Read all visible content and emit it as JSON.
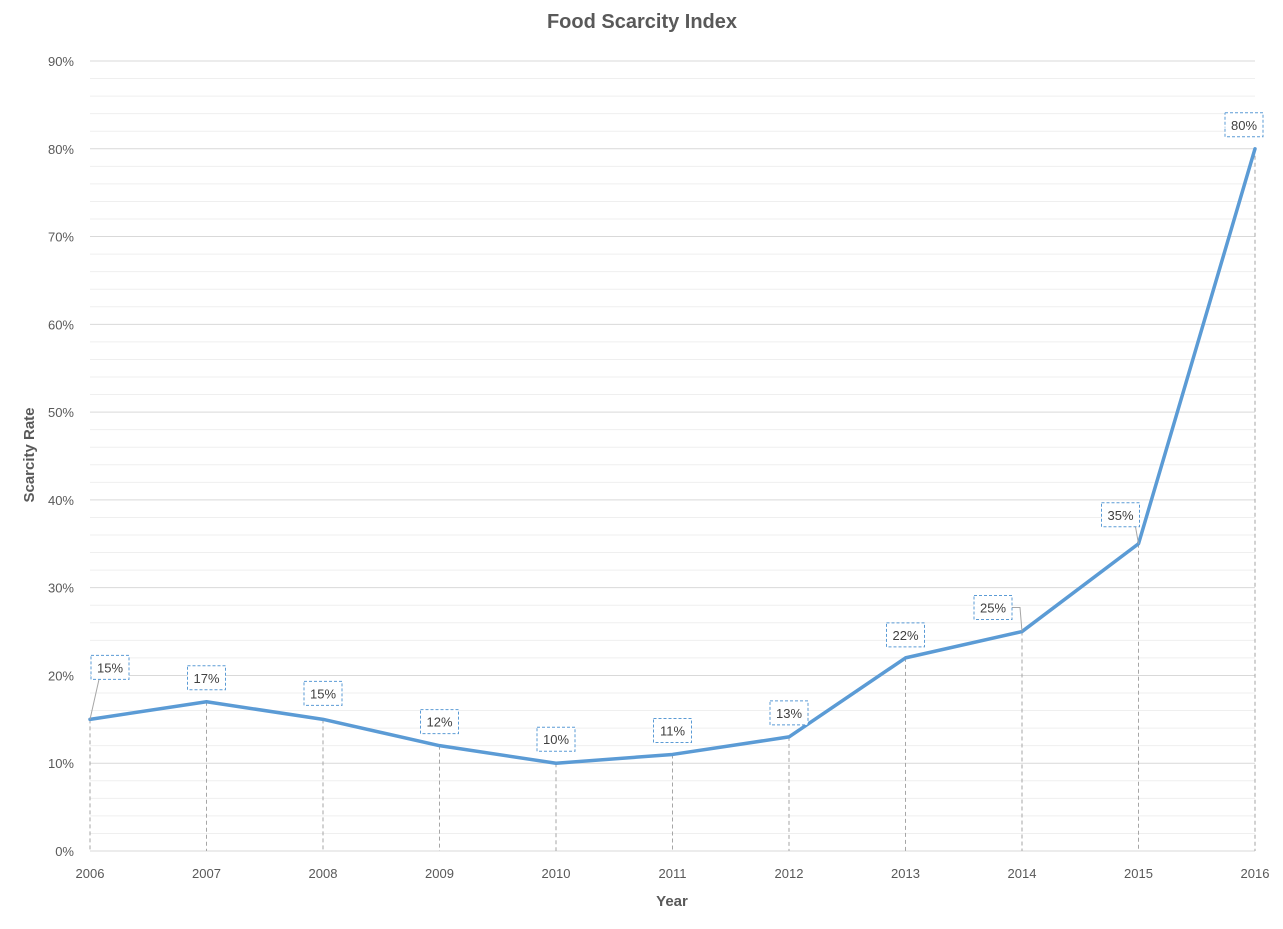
{
  "chart_data": {
    "type": "line",
    "title": "Food Scarcity Index",
    "xlabel": "Year",
    "ylabel": "Scarcity Rate",
    "categories": [
      "2006",
      "2007",
      "2008",
      "2009",
      "2010",
      "2011",
      "2012",
      "2013",
      "2014",
      "2015",
      "2016"
    ],
    "series": [
      {
        "values": [
          15,
          17,
          15,
          12,
          10,
          11,
          13,
          22,
          25,
          35,
          80
        ],
        "labels": [
          "15%",
          "17%",
          "15%",
          "12%",
          "10%",
          "11%",
          "13%",
          "22%",
          "25%",
          "35%",
          "80%"
        ],
        "color": "#5b9bd5"
      }
    ],
    "ylim": [
      0,
      90
    ],
    "yticks": [
      0,
      10,
      20,
      30,
      40,
      50,
      60,
      70,
      80,
      90
    ],
    "ytick_labels": [
      "0%",
      "10%",
      "20%",
      "30%",
      "40%",
      "50%",
      "60%",
      "70%",
      "80%",
      "90%"
    ],
    "grid": true,
    "drop_lines": true
  }
}
